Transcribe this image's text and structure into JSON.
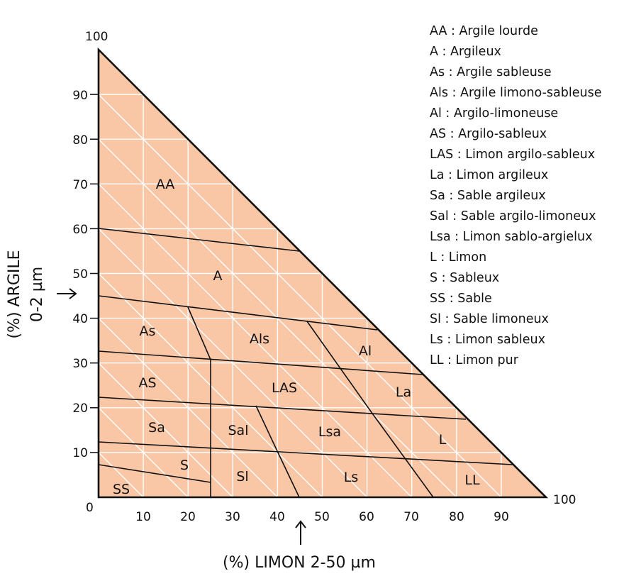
{
  "y_axis": {
    "title_line1": "(%) ARGILE",
    "title_line2": "0-2 µm",
    "ticks": [
      "0",
      "10",
      "20",
      "30",
      "40",
      "50",
      "60",
      "70",
      "80",
      "90",
      "100"
    ]
  },
  "x_axis": {
    "title": "(%) LIMON 2-50 µm",
    "ticks": [
      "10",
      "20",
      "30",
      "40",
      "50",
      "60",
      "70",
      "80",
      "90"
    ],
    "end_label": "100"
  },
  "zones": [
    "AA",
    "A",
    "As",
    "Als",
    "Al",
    "AS",
    "LAS",
    "La",
    "Sa",
    "Sal",
    "Lsa",
    "L",
    "S",
    "Sl",
    "Ls",
    "SS",
    "LL"
  ],
  "legend": [
    "AA : Argile lourde",
    "A : Argileux",
    "As : Argile sableuse",
    "Als : Argile limono-sableuse",
    "Al : Argilo-limoneuse",
    "AS : Argilo-sableux",
    "LAS : Limon argilo-sableux",
    "La : Limon argileux",
    "Sa : Sable argileux",
    "Sal : Sable argilo-limoneux",
    "Lsa : Limon sablo-argielux",
    "L : Limon",
    "S : Sableux",
    "SS : Sable",
    "Sl : Sable limoneux",
    "Ls : Limon sableux",
    "LL : Limon pur"
  ],
  "colors": {
    "fill": "#F9C6A6",
    "grid": "#ffffff",
    "line": "#111111"
  }
}
